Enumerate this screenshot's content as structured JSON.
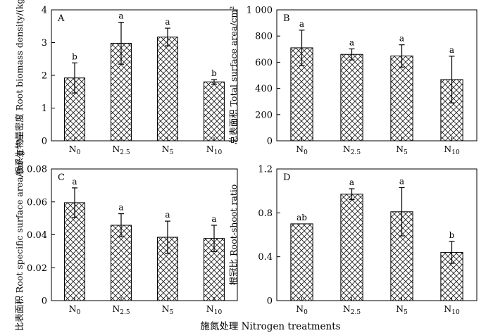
{
  "figure": {
    "xlabel": "施氮处理 Nitrogen treatments"
  },
  "chart_data": [
    {
      "type": "bar",
      "panel": "A",
      "ylabel_cn": "根系生物量密度",
      "ylabel_en": "Root biomass density/(kg·m⁻³)",
      "ylim": [
        0,
        4
      ],
      "yticks": [
        0,
        1,
        2,
        3,
        4
      ],
      "ytick_labels": [
        "0",
        "1",
        "2",
        "3",
        "4"
      ],
      "categories": [
        {
          "main": "N",
          "sub": "0"
        },
        {
          "main": "N",
          "sub": "2.5"
        },
        {
          "main": "N",
          "sub": "5"
        },
        {
          "main": "N",
          "sub": "10"
        }
      ],
      "values": [
        1.92,
        2.98,
        3.17,
        1.8
      ],
      "errors": [
        0.46,
        0.64,
        0.27,
        0.07
      ],
      "significance": [
        "b",
        "a",
        "a",
        "b"
      ]
    },
    {
      "type": "bar",
      "panel": "B",
      "ylabel_cn": "总表面积",
      "ylabel_en": "Total surface area/cm²",
      "ylim": [
        0,
        1000
      ],
      "yticks": [
        0,
        200,
        400,
        600,
        800,
        1000
      ],
      "ytick_labels": [
        "0",
        "200",
        "400",
        "600",
        "800",
        "1 000"
      ],
      "categories": [
        {
          "main": "N",
          "sub": "0"
        },
        {
          "main": "N",
          "sub": "2.5"
        },
        {
          "main": "N",
          "sub": "5"
        },
        {
          "main": "N",
          "sub": "10"
        }
      ],
      "values": [
        710,
        660,
        648,
        468
      ],
      "errors": [
        135,
        42,
        85,
        178
      ],
      "significance": [
        "a",
        "a",
        "a",
        "a"
      ]
    },
    {
      "type": "bar",
      "panel": "C",
      "ylabel_cn": "比表面积",
      "ylabel_en": "Root specific surface area/(m²·g⁻¹)",
      "ylim": [
        0,
        0.08
      ],
      "yticks": [
        0,
        0.02,
        0.04,
        0.06,
        0.08
      ],
      "ytick_labels": [
        "0",
        "0.02",
        "0.04",
        "0.06",
        "0.08"
      ],
      "categories": [
        {
          "main": "N",
          "sub": "0"
        },
        {
          "main": "N",
          "sub": "2.5"
        },
        {
          "main": "N",
          "sub": "5"
        },
        {
          "main": "N",
          "sub": "10"
        }
      ],
      "values": [
        0.0595,
        0.0458,
        0.0385,
        0.0378
      ],
      "errors": [
        0.009,
        0.007,
        0.0098,
        0.008
      ],
      "significance": [
        "a",
        "a",
        "a",
        "a"
      ]
    },
    {
      "type": "bar",
      "panel": "D",
      "ylabel_cn": "根冠比",
      "ylabel_en": "Root-shoot ratio",
      "ylim": [
        0,
        1.2
      ],
      "yticks": [
        0,
        0.4,
        0.8,
        1.2
      ],
      "ytick_labels": [
        "0",
        "0.4",
        "0.8",
        "1.2"
      ],
      "categories": [
        {
          "main": "N",
          "sub": "0"
        },
        {
          "main": "N",
          "sub": "2.5"
        },
        {
          "main": "N",
          "sub": "5"
        },
        {
          "main": "N",
          "sub": "10"
        }
      ],
      "values": [
        0.7,
        0.97,
        0.81,
        0.44
      ],
      "errors": [
        0,
        0.05,
        0.22,
        0.1
      ],
      "significance": [
        "ab",
        "a",
        "a",
        "b"
      ]
    }
  ]
}
